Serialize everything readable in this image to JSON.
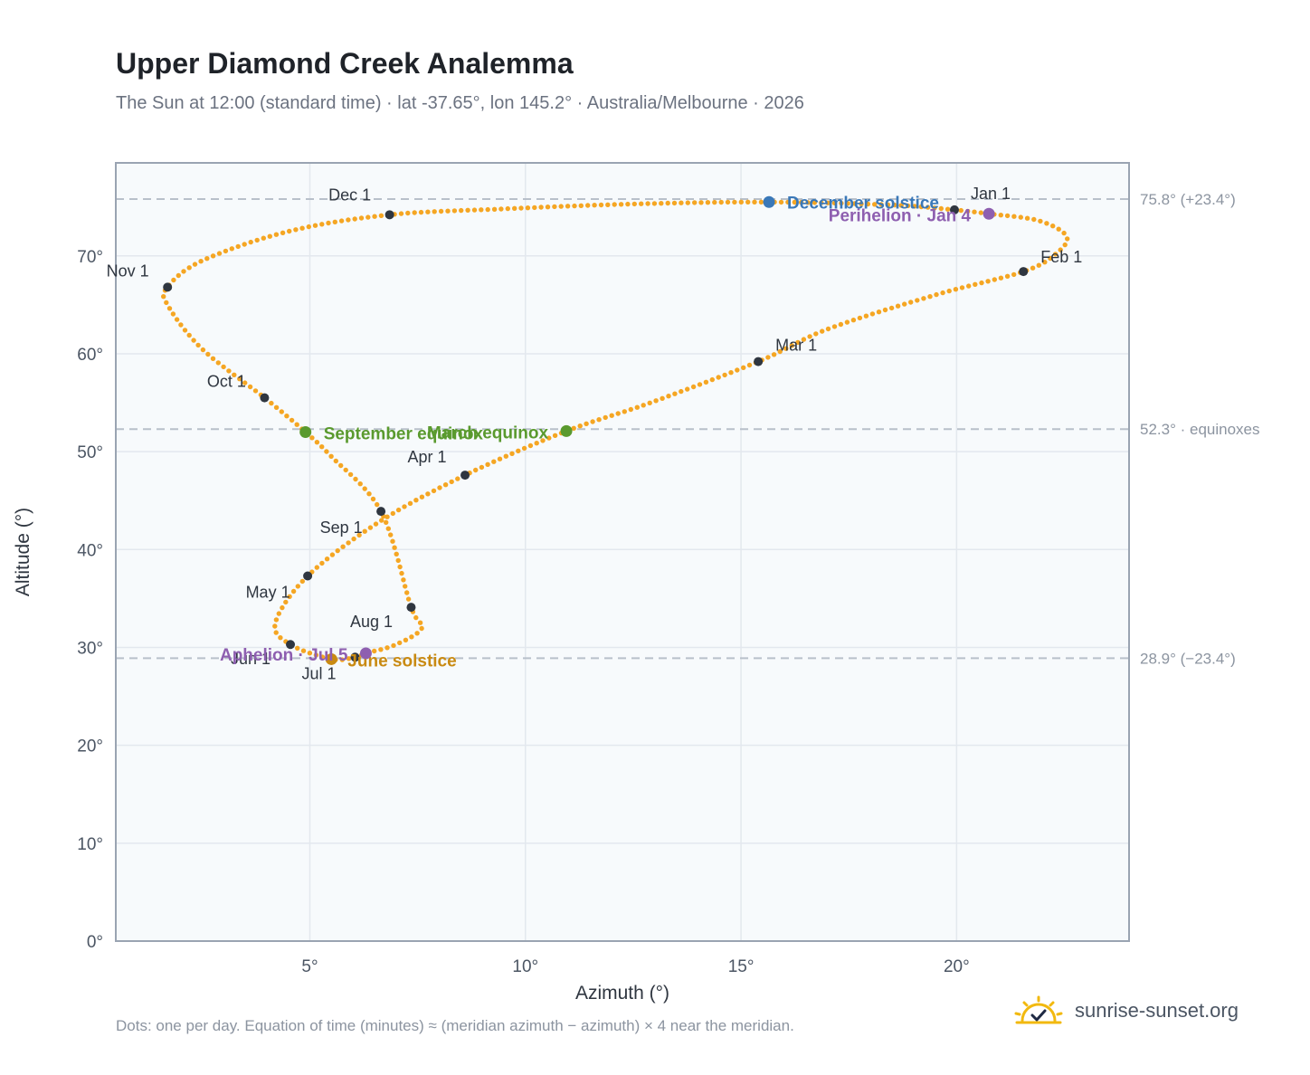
{
  "header": {
    "title": "Upper Diamond Creek Analemma",
    "subtitle": "The Sun at 12:00 (standard time) · lat -37.65°, lon 145.2° · Australia/Melbourne · 2026"
  },
  "footer": {
    "note": "Dots: one per day. Equation of time (minutes) ≈ (meridian azimuth − azimuth) × 4 near the meridian.",
    "brand": "sunrise-sunset.org",
    "brand_icon": "sun-check-icon"
  },
  "colors": {
    "curve": "#f5a623",
    "month_marker": "#2f3640",
    "equinox": "#5a9a2e",
    "december_solstice": "#3a78b8",
    "june_solstice": "#c98a12",
    "perihelion_aphelion": "#8e5fb0",
    "plot_bg": "#f7fafc",
    "grid": "#e3e8ee",
    "axis_frame": "#9aa4b2",
    "ref_line": "#b8c0ca"
  },
  "chart_data": {
    "type": "scatter",
    "title": "Upper Diamond Creek Analemma",
    "xlabel": "Azimuth (°)",
    "ylabel": "Altitude (°)",
    "xlim": [
      0.5,
      24.0
    ],
    "ylim": [
      0,
      79.5
    ],
    "x_ticks": [
      5,
      10,
      15,
      20
    ],
    "x_tick_labels": [
      "5°",
      "10°",
      "15°",
      "20°"
    ],
    "y_ticks": [
      0,
      10,
      20,
      30,
      40,
      50,
      60,
      70
    ],
    "y_tick_labels": [
      "0°",
      "10°",
      "20°",
      "30°",
      "40°",
      "50°",
      "60°",
      "70°"
    ],
    "grid": true,
    "reference_lines": [
      {
        "altitude": 75.8,
        "label": "75.8° (+23.4°)"
      },
      {
        "altitude": 52.3,
        "label": "52.3° · equinoxes"
      },
      {
        "altitude": 28.9,
        "label": "28.9° (−23.4°)"
      }
    ],
    "month_points": [
      {
        "label": "Jan 1",
        "azimuth": 19.95,
        "altitude": 74.7
      },
      {
        "label": "Feb 1",
        "azimuth": 21.55,
        "altitude": 68.4
      },
      {
        "label": "Mar 1",
        "azimuth": 15.4,
        "altitude": 59.2
      },
      {
        "label": "Apr 1",
        "azimuth": 8.6,
        "altitude": 47.6
      },
      {
        "label": "May 1",
        "azimuth": 4.95,
        "altitude": 37.3
      },
      {
        "label": "Jun 1",
        "azimuth": 4.55,
        "altitude": 30.3
      },
      {
        "label": "Jul 1",
        "azimuth": 6.05,
        "altitude": 29.0
      },
      {
        "label": "Aug 1",
        "azimuth": 7.35,
        "altitude": 34.1
      },
      {
        "label": "Sep 1",
        "azimuth": 6.65,
        "altitude": 43.9
      },
      {
        "label": "Oct 1",
        "azimuth": 3.95,
        "altitude": 55.5
      },
      {
        "label": "Nov 1",
        "azimuth": 1.7,
        "altitude": 66.8
      },
      {
        "label": "Dec 1",
        "azimuth": 6.85,
        "altitude": 74.2
      }
    ],
    "events": [
      {
        "label": "December solstice",
        "azimuth": 15.65,
        "altitude": 75.5,
        "color_key": "december_solstice"
      },
      {
        "label": "Perihelion · Jan 4",
        "azimuth": 20.75,
        "altitude": 74.3,
        "color_key": "perihelion_aphelion"
      },
      {
        "label": "March equinox",
        "azimuth": 10.95,
        "altitude": 52.1,
        "color_key": "equinox"
      },
      {
        "label": "September equinox",
        "azimuth": 4.9,
        "altitude": 52.0,
        "color_key": "equinox"
      },
      {
        "label": "June solstice",
        "azimuth": 5.5,
        "altitude": 28.8,
        "color_key": "june_solstice"
      },
      {
        "label": "Aphelion · Jul 5",
        "azimuth": 6.3,
        "altitude": 29.4,
        "color_key": "perihelion_aphelion"
      }
    ],
    "curve_points": [
      [
        19.95,
        74.7
      ],
      [
        20.75,
        74.3
      ],
      [
        21.9,
        73.6
      ],
      [
        22.55,
        72.0
      ],
      [
        22.3,
        70.2
      ],
      [
        21.55,
        68.4
      ],
      [
        19.5,
        66.0
      ],
      [
        17.0,
        62.5
      ],
      [
        15.4,
        59.2
      ],
      [
        12.9,
        55.0
      ],
      [
        10.95,
        52.1
      ],
      [
        8.6,
        47.6
      ],
      [
        6.6,
        42.8
      ],
      [
        4.95,
        37.3
      ],
      [
        4.2,
        32.5
      ],
      [
        4.55,
        30.3
      ],
      [
        5.5,
        28.8
      ],
      [
        6.05,
        29.0
      ],
      [
        6.3,
        29.4
      ],
      [
        7.0,
        30.3
      ],
      [
        7.6,
        32.0
      ],
      [
        7.35,
        34.1
      ],
      [
        6.65,
        43.9
      ],
      [
        5.5,
        49.5
      ],
      [
        4.9,
        52.0
      ],
      [
        3.95,
        55.5
      ],
      [
        2.5,
        60.5
      ],
      [
        1.7,
        65.0
      ],
      [
        1.7,
        66.8
      ],
      [
        2.5,
        69.5
      ],
      [
        4.5,
        72.5
      ],
      [
        6.85,
        74.2
      ],
      [
        9.5,
        74.8
      ],
      [
        12.5,
        75.3
      ],
      [
        15.65,
        75.5
      ],
      [
        18.5,
        75.2
      ],
      [
        19.95,
        74.7
      ]
    ]
  }
}
